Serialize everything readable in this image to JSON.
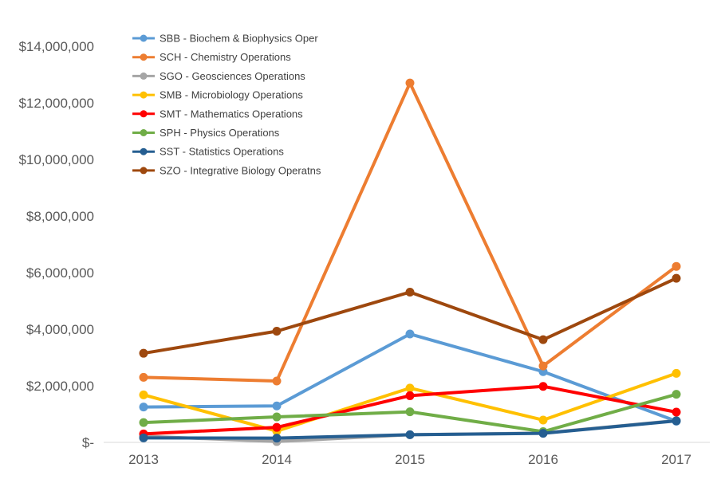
{
  "chart_data": {
    "type": "line",
    "title": "",
    "xlabel": "",
    "ylabel": "",
    "categories": [
      "2013",
      "2014",
      "2015",
      "2016",
      "2017"
    ],
    "ylim": [
      0,
      14000000
    ],
    "yticks": [
      0,
      2000000,
      4000000,
      6000000,
      8000000,
      10000000,
      12000000,
      14000000
    ],
    "ytick_labels": [
      "$-",
      "$2,000,000",
      "$4,000,000",
      "$6,000,000",
      "$8,000,000",
      "$10,000,000",
      "$12,000,000",
      "$14,000,000"
    ],
    "grid": false,
    "legend_position": "top-left",
    "series": [
      {
        "name": "SBB - Biochem & Biophysics Oper",
        "color": "#5B9BD5",
        "values": [
          1250000,
          1290000,
          3830000,
          2500000,
          750000
        ]
      },
      {
        "name": "SCH - Chemistry Operations",
        "color": "#ED7D31",
        "values": [
          2300000,
          2170000,
          12700000,
          2700000,
          6220000
        ]
      },
      {
        "name": "SGO - Geosciences Operations",
        "color": "#A5A5A5",
        "values": [
          220000,
          30000,
          270000,
          330000,
          770000
        ]
      },
      {
        "name": "SMB - Microbiology Operations",
        "color": "#FFC000",
        "values": [
          1680000,
          400000,
          1920000,
          790000,
          2440000
        ]
      },
      {
        "name": "SMT - Mathematics Operations",
        "color": "#FF0000",
        "values": [
          300000,
          530000,
          1650000,
          1980000,
          1070000
        ]
      },
      {
        "name": "SPH - Physics Operations",
        "color": "#70AD47",
        "values": [
          700000,
          900000,
          1080000,
          380000,
          1700000
        ]
      },
      {
        "name": "SST - Statistics Operations",
        "color": "#255E91",
        "values": [
          160000,
          150000,
          270000,
          320000,
          760000
        ]
      },
      {
        "name": "SZO - Integrative Biology Operatns",
        "color": "#9E480E",
        "values": [
          3150000,
          3930000,
          5310000,
          3630000,
          5800000
        ]
      }
    ]
  }
}
